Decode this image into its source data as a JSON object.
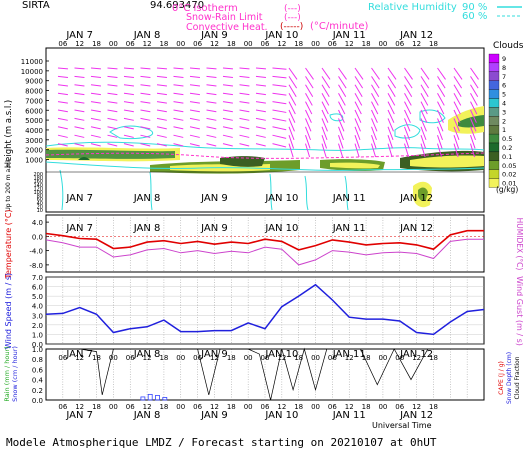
{
  "header": {
    "station": "SIRTA",
    "coords": "94.693470",
    "iso_label": "0°C isotherm",
    "snow_label": "Snow-Rain Limit",
    "conv_label": "Convective Heat.",
    "conv_unit": "(°C/minute)",
    "rh_label": "Relative Humidity",
    "rh_90": "90 %",
    "rh_60": "60 %",
    "dash_legend": "(---)",
    "solid_legend": "(-----)"
  },
  "footer": {
    "universal_time": "Universal Time",
    "caption": "Modele Atmospherique LMDZ / Forecast starting on 20210107 at 0hUT"
  },
  "clouds_bar": {
    "title": "Clouds",
    "unit": "(g/kg)",
    "ticks": [
      "9",
      "8",
      "7",
      "6",
      "5",
      "4",
      "3",
      "2",
      "1",
      "0.5",
      "0.2",
      "0.1",
      "0.05",
      "0.02",
      "0.01"
    ],
    "colors": [
      "#cc00ff",
      "#b040ff",
      "#8c4bd0",
      "#4466dd",
      "#2f8fe0",
      "#2cc6d0",
      "#5a9a86",
      "#6f8a60",
      "#5f7a3f",
      "#3e8a3e",
      "#1c6a2c",
      "#3b5f22",
      "#6d9d2a",
      "#c4d52a",
      "#f2f25a"
    ]
  },
  "chart_data": [
    {
      "type": "heatmap",
      "panel": "clouds_wind_profile",
      "ylabel": "Height (m a.s.l.)",
      "ylabel_low": "Up to 200 m a.s.l.",
      "yticks_high": [
        "11000",
        "10000",
        "9000",
        "8000",
        "7000",
        "6000",
        "5000",
        "4000",
        "3000",
        "2000",
        "1000"
      ],
      "yticks_low": [
        "200",
        "180",
        "160",
        "140",
        "120",
        "100",
        "80",
        "60",
        "40",
        "20",
        "10"
      ],
      "day_labels": [
        "JAN 7",
        "JAN 8",
        "JAN 9",
        "JAN 10",
        "JAN 11",
        "JAN 12"
      ],
      "hour_labels": [
        "06",
        "12",
        "18",
        "00",
        "06",
        "12",
        "18",
        "00",
        "06",
        "12",
        "18",
        "00",
        "06",
        "12",
        "18",
        "00",
        "06",
        "12",
        "18",
        "00",
        "06",
        "12",
        "18"
      ]
    },
    {
      "type": "line",
      "panel": "temperature",
      "ylabel": "Temperature (°C)",
      "ylabel_right": "HUMIDEX (°C)",
      "yticks": [
        "4.0",
        "0.0",
        "-4.0",
        "-8.0"
      ],
      "ylim": [
        -10,
        6
      ],
      "x_hours": [
        0,
        6,
        12,
        18,
        24,
        30,
        36,
        42,
        48,
        54,
        60,
        66,
        72,
        78,
        84,
        90,
        96,
        102,
        108,
        114,
        120,
        126,
        132,
        138,
        144,
        150,
        156
      ],
      "series": [
        {
          "color": "#e00000",
          "values": [
            0.8,
            0.2,
            -0.6,
            -0.8,
            -3.4,
            -3.0,
            -1.6,
            -1.2,
            -2.0,
            -1.4,
            -2.2,
            -1.6,
            -2.0,
            -0.8,
            -1.4,
            -3.8,
            -2.6,
            -1.0,
            -1.6,
            -2.4,
            -2.0,
            -1.8,
            -2.4,
            -3.6,
            0.4,
            1.6,
            1.6
          ]
        },
        {
          "color": "#cc44cc",
          "values": [
            -1.0,
            -1.8,
            -3.0,
            -3.0,
            -5.8,
            -5.2,
            -3.8,
            -3.4,
            -4.6,
            -4.0,
            -4.8,
            -4.2,
            -4.6,
            -3.0,
            -3.6,
            -8.0,
            -6.6,
            -4.0,
            -4.4,
            -5.2,
            -4.6,
            -4.4,
            -4.8,
            -6.2,
            -1.4,
            -0.8,
            -0.8
          ]
        }
      ]
    },
    {
      "type": "line",
      "panel": "wind",
      "ylabel": "Wind Speed (m / s)",
      "ylabel_right": "Wind Gust (m / s)",
      "yticks": [
        "7.0",
        "6.0",
        "5.0",
        "4.0",
        "3.0",
        "2.0",
        "1.0",
        "0.0"
      ],
      "ylim": [
        0,
        7
      ],
      "x_hours": [
        0,
        6,
        12,
        18,
        24,
        30,
        36,
        42,
        48,
        54,
        60,
        66,
        72,
        78,
        84,
        90,
        96,
        102,
        108,
        114,
        120,
        126,
        132,
        138,
        144,
        150,
        156
      ],
      "series": [
        {
          "color": "#2020dd",
          "values": [
            3.1,
            3.2,
            3.8,
            3.1,
            1.2,
            1.6,
            1.8,
            2.5,
            1.3,
            1.3,
            1.4,
            1.4,
            2.2,
            1.6,
            3.9,
            5.0,
            6.2,
            4.6,
            2.8,
            2.6,
            2.6,
            2.4,
            1.2,
            1.0,
            2.3,
            3.4,
            3.6
          ]
        }
      ]
    },
    {
      "type": "bar",
      "panel": "precipitation",
      "ylabel": "Rain (mm / hour)",
      "ylabel2": "Snow (cm / hour)",
      "ylabel_right": "CAPE (J / g)",
      "ylabel_right2": "Snow Depth (cm)",
      "ylabel_right3": "Cloud Fraction",
      "yticks": [
        "1.0",
        "0.8",
        "0.6",
        "0.4",
        "0.2",
        "0.0"
      ],
      "ylim": [
        0,
        1
      ],
      "rain_bars": [
        {
          "x": 13,
          "v": 0.06
        },
        {
          "x": 14,
          "v": 0.11
        },
        {
          "x": 15,
          "v": 0.09
        },
        {
          "x": 16,
          "v": 0.05
        }
      ],
      "series": [
        {
          "name": "Cloud Fraction",
          "color": "#000000",
          "x_hours": [
            0,
            6,
            12,
            18,
            20,
            24,
            30,
            36,
            42,
            48,
            54,
            58,
            62,
            66,
            72,
            76,
            80,
            84,
            88,
            92,
            96,
            100,
            104,
            108,
            112,
            118,
            124,
            130,
            136,
            142,
            148,
            156
          ],
          "values": [
            1,
            1,
            1,
            0.95,
            0.1,
            1,
            1,
            1,
            1,
            1,
            1,
            0.1,
            1,
            1,
            1,
            0.9,
            0,
            1,
            0.2,
            1,
            0.2,
            1,
            1,
            1,
            1,
            0.3,
            1,
            0.4,
            1,
            1,
            1,
            1
          ]
        }
      ]
    }
  ]
}
